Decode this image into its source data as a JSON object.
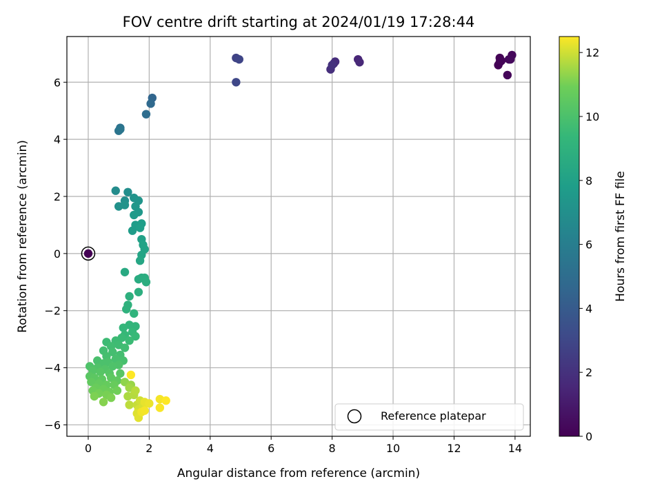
{
  "chart_data": {
    "type": "scatter",
    "title": "FOV centre drift starting at 2024/01/19 17:28:44",
    "xlabel": "Angular distance from reference (arcmin)",
    "ylabel": "Rotation from reference (arcmin)",
    "xlim": [
      -0.7,
      14.5
    ],
    "ylim": [
      -6.4,
      7.6
    ],
    "xticks": [
      0,
      2,
      4,
      6,
      8,
      10,
      12,
      14
    ],
    "yticks": [
      -6,
      -4,
      -2,
      0,
      2,
      4,
      6
    ],
    "grid": true,
    "colormap": "viridis",
    "colorbar": {
      "label": "Hours from first FF file",
      "range": [
        0,
        12.5
      ],
      "ticks": [
        0,
        2,
        4,
        6,
        8,
        10,
        12
      ]
    },
    "legend": {
      "position": "lower-right",
      "entries": [
        "Reference platepar"
      ]
    },
    "reference_point": {
      "x": 0,
      "y": 0,
      "c": 0
    },
    "series": [
      {
        "points": [
          [
            13.5,
            6.7,
            0.0
          ],
          [
            13.45,
            6.6,
            0.05
          ],
          [
            13.5,
            6.85,
            0.1
          ],
          [
            13.55,
            6.75,
            0.15
          ],
          [
            13.75,
            6.25,
            0.2
          ],
          [
            13.8,
            6.8,
            0.25
          ],
          [
            13.9,
            6.95,
            0.3
          ],
          [
            13.85,
            6.8,
            0.35
          ],
          [
            8.85,
            6.8,
            1.5
          ],
          [
            8.9,
            6.7,
            1.6
          ],
          [
            8.05,
            6.65,
            1.7
          ],
          [
            8.1,
            6.72,
            1.8
          ],
          [
            7.95,
            6.45,
            1.9
          ],
          [
            8.0,
            6.6,
            2.0
          ],
          [
            4.85,
            6.85,
            2.8
          ],
          [
            4.95,
            6.8,
            2.9
          ],
          [
            4.85,
            6.0,
            3.0
          ],
          [
            2.1,
            5.45,
            4.6
          ],
          [
            2.05,
            5.25,
            4.8
          ],
          [
            1.9,
            4.88,
            5.0
          ],
          [
            1.05,
            4.4,
            5.3
          ],
          [
            1.0,
            4.3,
            5.4
          ],
          [
            1.05,
            4.35,
            5.5
          ],
          [
            0.9,
            2.2,
            6.8
          ],
          [
            1.3,
            2.15,
            6.9
          ],
          [
            1.2,
            1.85,
            7.0
          ],
          [
            1.0,
            1.65,
            7.1
          ],
          [
            1.2,
            1.7,
            7.2
          ],
          [
            1.5,
            1.95,
            7.2
          ],
          [
            1.65,
            1.85,
            7.3
          ],
          [
            1.55,
            1.65,
            7.4
          ],
          [
            1.65,
            1.45,
            7.5
          ],
          [
            1.5,
            1.35,
            7.6
          ],
          [
            1.45,
            0.8,
            7.7
          ],
          [
            1.55,
            1.0,
            7.75
          ],
          [
            1.75,
            1.05,
            7.8
          ],
          [
            1.7,
            0.9,
            7.85
          ],
          [
            1.75,
            0.5,
            8.0
          ],
          [
            1.8,
            0.3,
            8.1
          ],
          [
            1.85,
            0.15,
            8.15
          ],
          [
            1.75,
            -0.05,
            8.2
          ],
          [
            1.7,
            -0.25,
            8.3
          ],
          [
            1.2,
            -0.65,
            8.5
          ],
          [
            1.65,
            -0.9,
            8.6
          ],
          [
            1.75,
            -0.85,
            8.65
          ],
          [
            1.85,
            -0.85,
            8.7
          ],
          [
            1.9,
            -1.0,
            8.75
          ],
          [
            1.65,
            -1.35,
            8.8
          ],
          [
            1.35,
            -1.5,
            8.9
          ],
          [
            1.3,
            -1.8,
            9.0
          ],
          [
            1.25,
            -1.95,
            9.0
          ],
          [
            1.5,
            -2.1,
            9.1
          ],
          [
            1.55,
            -2.55,
            9.2
          ],
          [
            1.35,
            -2.5,
            9.2
          ],
          [
            1.15,
            -2.6,
            9.3
          ],
          [
            1.45,
            -2.75,
            9.35
          ],
          [
            1.2,
            -2.85,
            9.4
          ],
          [
            1.55,
            -2.9,
            9.45
          ],
          [
            1.1,
            -2.95,
            9.5
          ],
          [
            1.35,
            -3.05,
            9.55
          ],
          [
            0.9,
            -3.05,
            9.6
          ],
          [
            0.6,
            -3.1,
            9.6
          ],
          [
            1.0,
            -3.2,
            9.65
          ],
          [
            0.75,
            -3.25,
            9.7
          ],
          [
            1.2,
            -3.3,
            9.7
          ],
          [
            0.5,
            -3.4,
            9.75
          ],
          [
            0.8,
            -3.45,
            9.8
          ],
          [
            1.05,
            -3.55,
            9.8
          ],
          [
            0.6,
            -3.6,
            9.85
          ],
          [
            0.9,
            -3.7,
            9.9
          ],
          [
            1.15,
            -3.75,
            9.9
          ],
          [
            0.3,
            -3.75,
            9.95
          ],
          [
            0.65,
            -3.8,
            10.0
          ],
          [
            0.5,
            -3.85,
            10.0
          ],
          [
            1.0,
            -3.9,
            10.05
          ],
          [
            0.8,
            -3.95,
            10.1
          ],
          [
            0.05,
            -3.95,
            10.1
          ],
          [
            0.3,
            -4.0,
            10.15
          ],
          [
            0.55,
            -4.05,
            10.2
          ],
          [
            0.15,
            -4.1,
            10.25
          ],
          [
            0.4,
            -4.15,
            10.3
          ],
          [
            0.7,
            -4.2,
            10.3
          ],
          [
            1.05,
            -4.2,
            10.35
          ],
          [
            0.05,
            -4.3,
            10.4
          ],
          [
            0.2,
            -4.35,
            10.45
          ],
          [
            0.45,
            -4.4,
            10.5
          ],
          [
            0.75,
            -4.35,
            10.5
          ],
          [
            0.95,
            -4.45,
            10.55
          ],
          [
            0.1,
            -4.5,
            10.6
          ],
          [
            0.35,
            -4.55,
            10.65
          ],
          [
            0.6,
            -4.6,
            10.7
          ],
          [
            0.85,
            -4.6,
            10.75
          ],
          [
            0.25,
            -4.7,
            10.8
          ],
          [
            0.5,
            -4.75,
            10.85
          ],
          [
            0.15,
            -4.8,
            10.9
          ],
          [
            0.7,
            -4.85,
            10.9
          ],
          [
            0.95,
            -4.8,
            10.95
          ],
          [
            0.35,
            -4.9,
            11.0
          ],
          [
            0.6,
            -4.95,
            11.05
          ],
          [
            0.2,
            -5.0,
            11.1
          ],
          [
            0.75,
            -5.05,
            11.1
          ],
          [
            0.5,
            -5.2,
            11.2
          ],
          [
            1.2,
            -4.5,
            11.3
          ],
          [
            1.4,
            -4.6,
            11.4
          ],
          [
            1.35,
            -4.7,
            11.5
          ],
          [
            1.3,
            -5.0,
            11.6
          ],
          [
            1.5,
            -4.95,
            11.7
          ],
          [
            1.55,
            -4.8,
            11.75
          ],
          [
            1.35,
            -5.3,
            11.8
          ],
          [
            1.6,
            -5.3,
            11.9
          ],
          [
            1.7,
            -5.15,
            12.0
          ],
          [
            1.65,
            -5.45,
            12.05
          ],
          [
            1.8,
            -5.35,
            12.1
          ],
          [
            1.6,
            -5.6,
            12.15
          ],
          [
            1.65,
            -5.75,
            12.2
          ],
          [
            1.85,
            -5.2,
            12.25
          ],
          [
            2.0,
            -5.25,
            12.3
          ],
          [
            1.75,
            -5.55,
            12.35
          ],
          [
            1.85,
            -5.5,
            12.4
          ],
          [
            2.35,
            -5.1,
            12.4
          ],
          [
            2.35,
            -5.4,
            12.45
          ],
          [
            2.55,
            -5.15,
            12.5
          ],
          [
            1.4,
            -4.25,
            12.5
          ]
        ]
      }
    ]
  }
}
